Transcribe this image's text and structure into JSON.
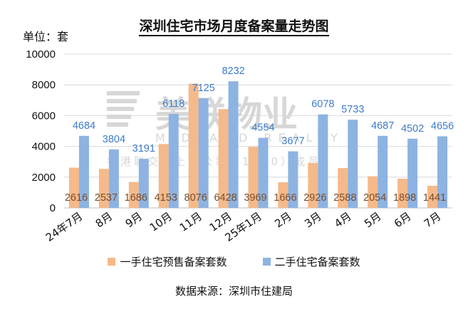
{
  "title": "深圳住宅市场月度备案量走势图",
  "unit_label": "单位：套",
  "source": "数据来源：深圳市住建局",
  "colors": {
    "new_homes": "#f5b98a",
    "second_hand": "#8db3e2",
    "new_label": "#7a4e2a",
    "second_label": "#3d7cc9",
    "grid": "#d9d9d9",
    "watermark": "#d7d7d7"
  },
  "watermark": {
    "brand": "美联物业",
    "english": "MIDLAND REALTY",
    "sub": "香港联交所上市公司（1200）成员"
  },
  "chart_data": {
    "type": "bar",
    "title": "深圳住宅市场月度备案量走势图",
    "ylabel": "单位：套",
    "ylim": [
      0,
      10000
    ],
    "yticks": [
      "0",
      "2000",
      "4000",
      "6000",
      "8000",
      "10000"
    ],
    "grid": true,
    "legend_position": "bottom",
    "categories": [
      "24年7月",
      "8月",
      "9月",
      "10月",
      "11月",
      "12月",
      "25年1月",
      "2月",
      "3月",
      "4月",
      "5月",
      "6月",
      "7月"
    ],
    "series": [
      {
        "name": "一手住宅预售备案套数",
        "values": [
          2616,
          2537,
          1686,
          4153,
          8076,
          6428,
          3969,
          1666,
          2926,
          2588,
          2054,
          1898,
          1441
        ]
      },
      {
        "name": "二手住宅备案套数",
        "values": [
          4684,
          3804,
          3191,
          6118,
          7125,
          8232,
          4554,
          3677,
          6078,
          5733,
          4687,
          4502,
          4656
        ]
      }
    ]
  }
}
